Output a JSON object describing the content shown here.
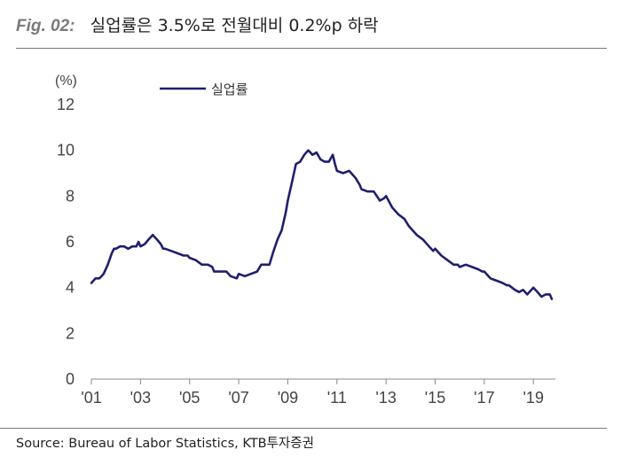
{
  "header": {
    "fig_label": "Fig. 02:",
    "title": "실업률은 3.5%로 전월대비 0.2%p 하락"
  },
  "source": "Source: Bureau of Labor Statistics, KTB투자증권",
  "colors": {
    "series": "#1f1f6e",
    "axis": "#888888",
    "text": "#444444"
  },
  "chart_data": {
    "type": "line",
    "title": "",
    "xlabel": "",
    "ylabel": "(%)",
    "ylim": [
      0,
      12
    ],
    "yticks": [
      0,
      2,
      4,
      6,
      8,
      10,
      12
    ],
    "xlim": [
      2001.0,
      2019.75
    ],
    "xticks": [
      {
        "value": 2001,
        "label": "'01"
      },
      {
        "value": 2003,
        "label": "'03"
      },
      {
        "value": 2005,
        "label": "'05"
      },
      {
        "value": 2007,
        "label": "'07"
      },
      {
        "value": 2009,
        "label": "'09"
      },
      {
        "value": 2011,
        "label": "'11"
      },
      {
        "value": 2013,
        "label": "'13"
      },
      {
        "value": 2015,
        "label": "'15"
      },
      {
        "value": 2017,
        "label": "'17"
      },
      {
        "value": 2019,
        "label": "'19"
      }
    ],
    "grid": false,
    "legend_position": "top",
    "series": [
      {
        "name": "실업률",
        "color": "#1f1f6e",
        "points": [
          [
            2001.0,
            4.2
          ],
          [
            2001.17,
            4.4
          ],
          [
            2001.33,
            4.4
          ],
          [
            2001.5,
            4.6
          ],
          [
            2001.67,
            5.0
          ],
          [
            2001.83,
            5.5
          ],
          [
            2001.92,
            5.7
          ],
          [
            2002.0,
            5.7
          ],
          [
            2002.17,
            5.8
          ],
          [
            2002.33,
            5.8
          ],
          [
            2002.5,
            5.7
          ],
          [
            2002.67,
            5.8
          ],
          [
            2002.83,
            5.8
          ],
          [
            2002.92,
            6.0
          ],
          [
            2003.0,
            5.8
          ],
          [
            2003.17,
            5.9
          ],
          [
            2003.33,
            6.1
          ],
          [
            2003.5,
            6.3
          ],
          [
            2003.67,
            6.1
          ],
          [
            2003.83,
            5.9
          ],
          [
            2003.92,
            5.7
          ],
          [
            2004.0,
            5.7
          ],
          [
            2004.25,
            5.6
          ],
          [
            2004.5,
            5.5
          ],
          [
            2004.75,
            5.4
          ],
          [
            2004.92,
            5.4
          ],
          [
            2005.0,
            5.3
          ],
          [
            2005.25,
            5.2
          ],
          [
            2005.5,
            5.0
          ],
          [
            2005.75,
            5.0
          ],
          [
            2005.92,
            4.9
          ],
          [
            2006.0,
            4.7
          ],
          [
            2006.25,
            4.7
          ],
          [
            2006.5,
            4.7
          ],
          [
            2006.67,
            4.5
          ],
          [
            2006.92,
            4.4
          ],
          [
            2007.0,
            4.6
          ],
          [
            2007.25,
            4.5
          ],
          [
            2007.5,
            4.6
          ],
          [
            2007.75,
            4.7
          ],
          [
            2007.92,
            5.0
          ],
          [
            2008.0,
            5.0
          ],
          [
            2008.25,
            5.0
          ],
          [
            2008.42,
            5.6
          ],
          [
            2008.58,
            6.1
          ],
          [
            2008.75,
            6.5
          ],
          [
            2008.92,
            7.3
          ],
          [
            2009.0,
            7.8
          ],
          [
            2009.17,
            8.6
          ],
          [
            2009.33,
            9.4
          ],
          [
            2009.5,
            9.5
          ],
          [
            2009.67,
            9.8
          ],
          [
            2009.83,
            10.0
          ],
          [
            2009.92,
            9.9
          ],
          [
            2010.0,
            9.8
          ],
          [
            2010.17,
            9.9
          ],
          [
            2010.33,
            9.6
          ],
          [
            2010.5,
            9.5
          ],
          [
            2010.67,
            9.5
          ],
          [
            2010.83,
            9.8
          ],
          [
            2010.92,
            9.4
          ],
          [
            2011.0,
            9.1
          ],
          [
            2011.25,
            9.0
          ],
          [
            2011.5,
            9.1
          ],
          [
            2011.75,
            8.8
          ],
          [
            2011.92,
            8.5
          ],
          [
            2012.0,
            8.3
          ],
          [
            2012.25,
            8.2
          ],
          [
            2012.5,
            8.2
          ],
          [
            2012.75,
            7.8
          ],
          [
            2012.92,
            7.9
          ],
          [
            2013.0,
            8.0
          ],
          [
            2013.25,
            7.5
          ],
          [
            2013.5,
            7.2
          ],
          [
            2013.75,
            7.0
          ],
          [
            2013.92,
            6.7
          ],
          [
            2014.0,
            6.6
          ],
          [
            2014.25,
            6.3
          ],
          [
            2014.5,
            6.1
          ],
          [
            2014.75,
            5.8
          ],
          [
            2014.92,
            5.6
          ],
          [
            2015.0,
            5.7
          ],
          [
            2015.25,
            5.4
          ],
          [
            2015.5,
            5.2
          ],
          [
            2015.75,
            5.0
          ],
          [
            2015.92,
            5.0
          ],
          [
            2016.0,
            4.9
          ],
          [
            2016.25,
            5.0
          ],
          [
            2016.5,
            4.9
          ],
          [
            2016.75,
            4.8
          ],
          [
            2016.92,
            4.7
          ],
          [
            2017.0,
            4.7
          ],
          [
            2017.25,
            4.4
          ],
          [
            2017.5,
            4.3
          ],
          [
            2017.75,
            4.2
          ],
          [
            2017.92,
            4.1
          ],
          [
            2018.0,
            4.1
          ],
          [
            2018.25,
            3.9
          ],
          [
            2018.42,
            3.8
          ],
          [
            2018.58,
            3.9
          ],
          [
            2018.75,
            3.7
          ],
          [
            2018.92,
            3.9
          ],
          [
            2019.0,
            4.0
          ],
          [
            2019.17,
            3.8
          ],
          [
            2019.33,
            3.6
          ],
          [
            2019.5,
            3.7
          ],
          [
            2019.67,
            3.7
          ],
          [
            2019.75,
            3.5
          ]
        ]
      }
    ]
  }
}
